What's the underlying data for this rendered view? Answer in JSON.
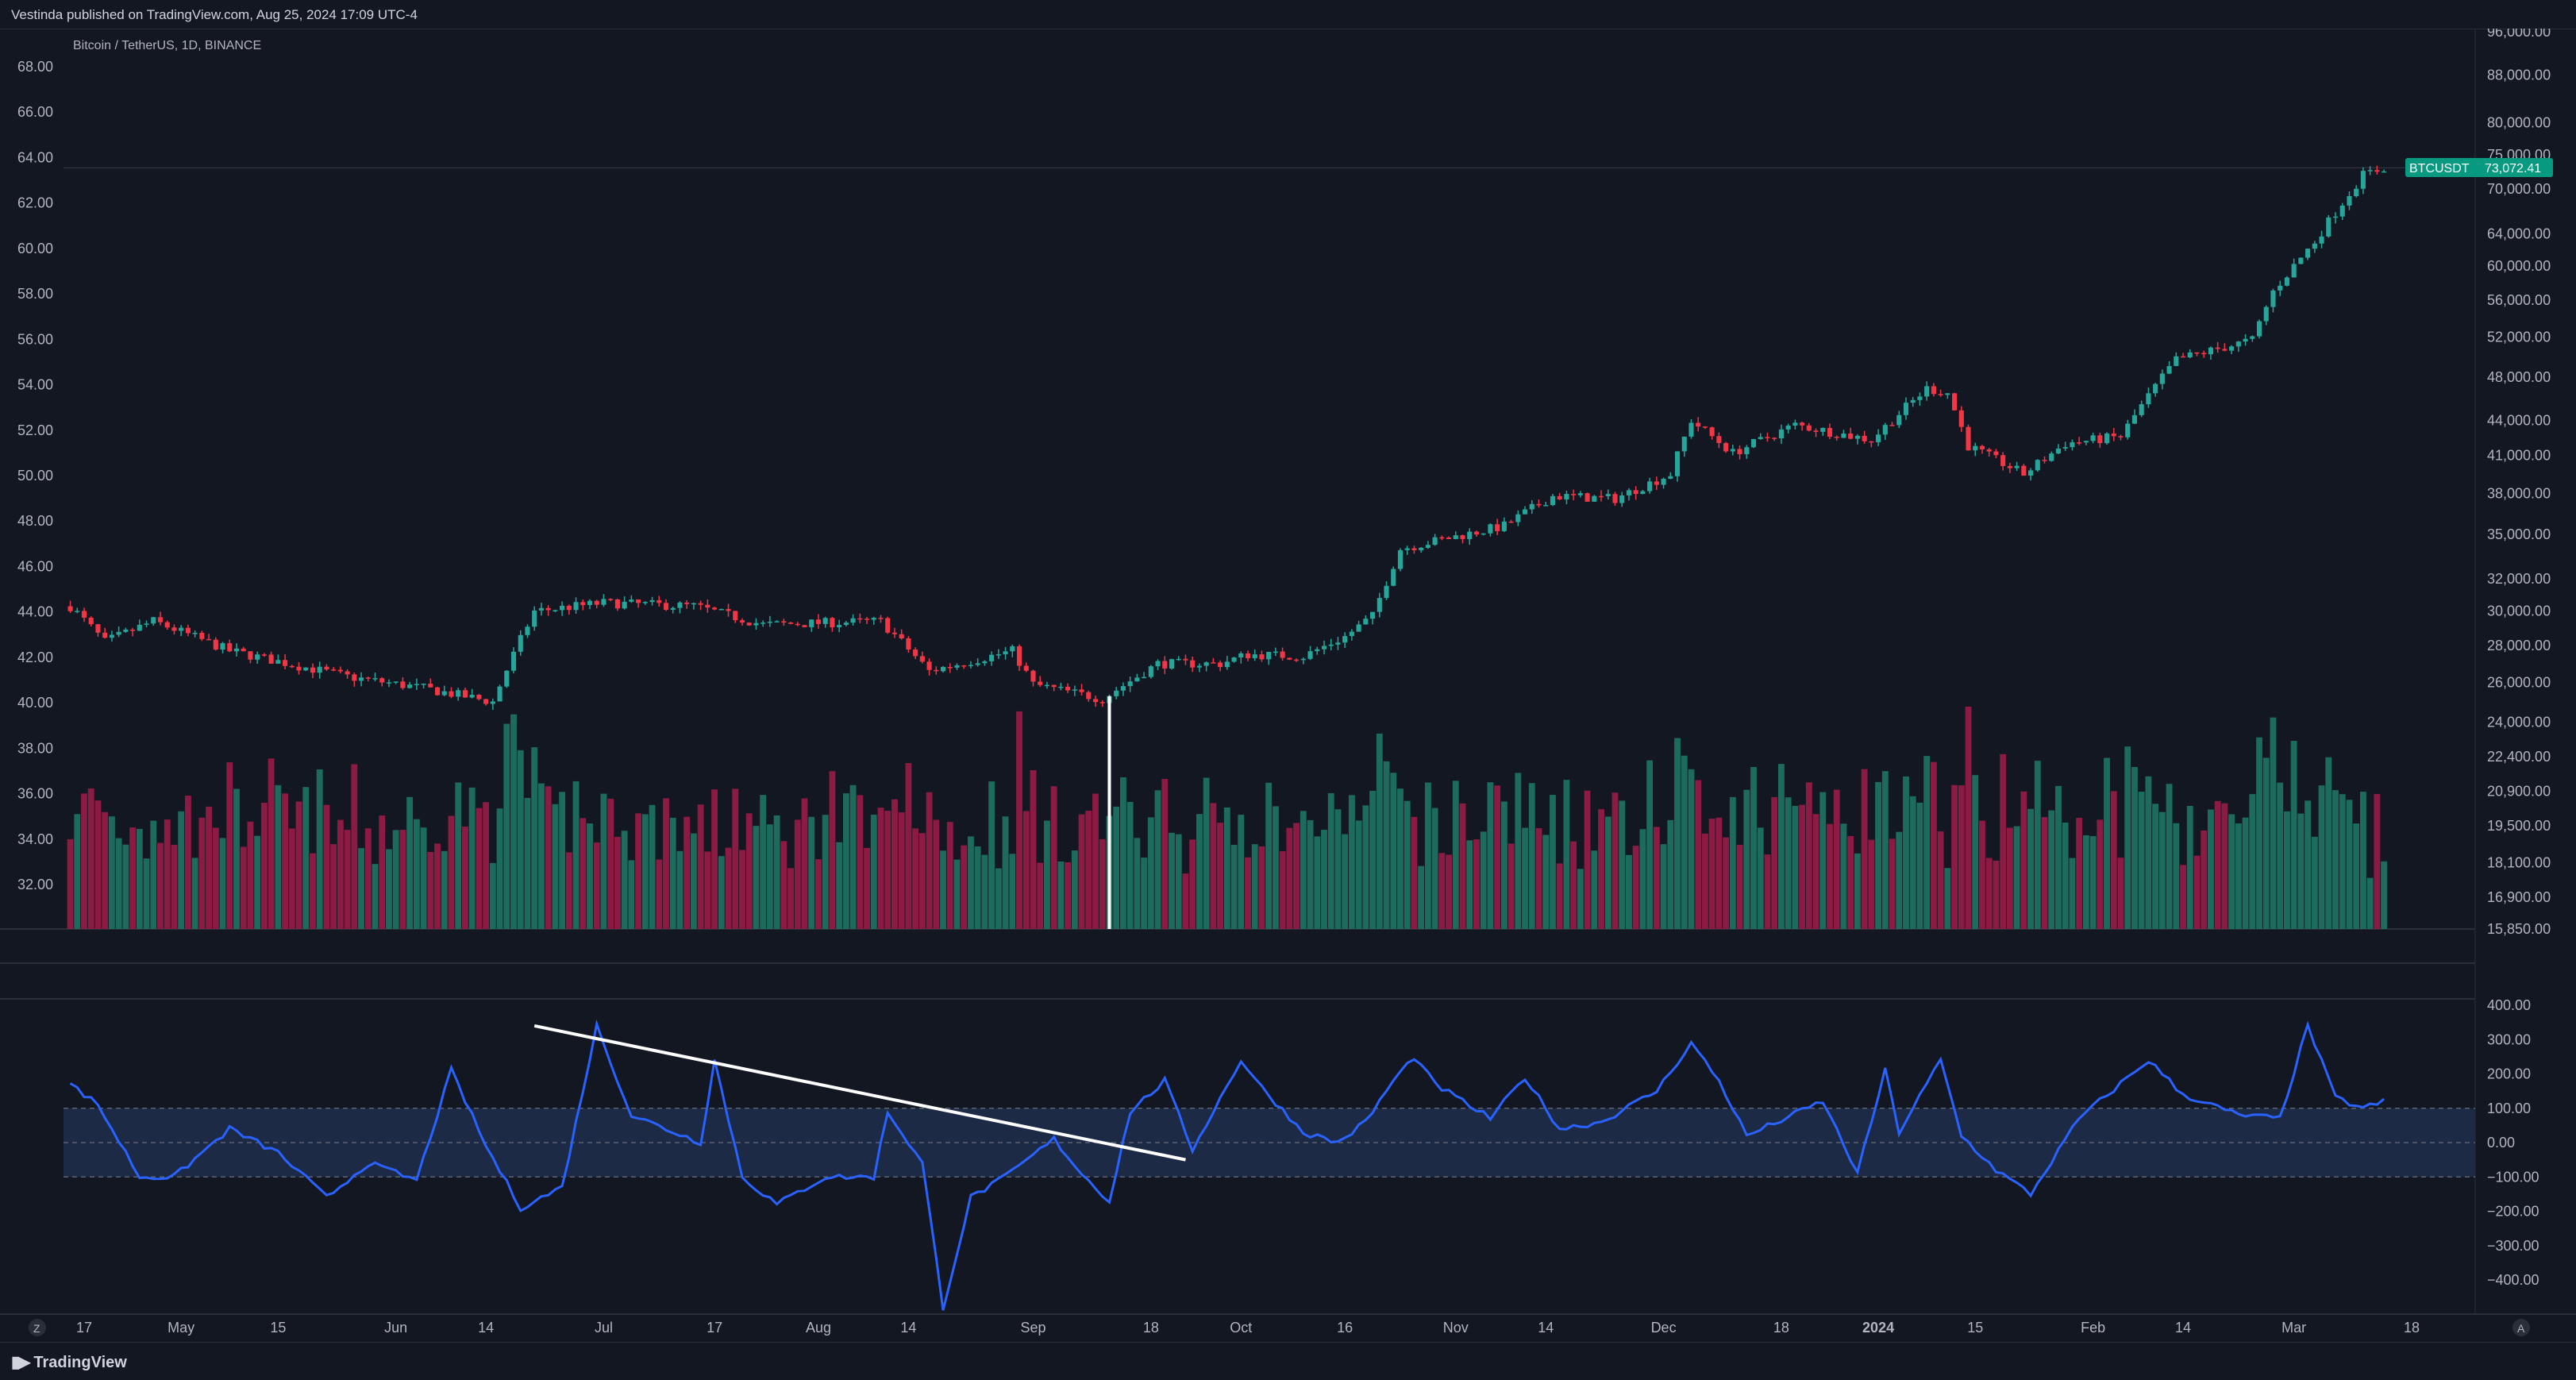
{
  "header": {
    "published": "Vestinda published on TradingView.com, Aug 25, 2024 17:09 UTC-4"
  },
  "symbol": {
    "title": "Bitcoin / TetherUS, 1D, BINANCE",
    "badge_name": "BTCUSDT",
    "badge_price": "73,072.41"
  },
  "footer": {
    "brand": "TradingView",
    "left_marker": "Z",
    "right_marker": "A"
  },
  "colors": {
    "background": "#131722",
    "up": "#26a69a",
    "down": "#f23645",
    "volume_up": "#1d6b5c",
    "volume_down": "#8c1b43",
    "oscillator": "#2962ff",
    "band_fill": "#1c2a46",
    "badge": "#089981",
    "annotation": "#ffffff"
  },
  "chart_data": [
    {
      "type": "candlestick",
      "title": "Bitcoin / TetherUS, 1D, BINANCE",
      "y_scale": "log",
      "ylim": [
        15850,
        96000
      ],
      "right_axis_ticks": [
        "96,000.00",
        "88,000.00",
        "80,000.00",
        "75,000.00",
        "70,000.00",
        "64,000.00",
        "60,000.00",
        "56,000.00",
        "52,000.00",
        "48,000.00",
        "44,000.00",
        "41,000.00",
        "38,000.00",
        "35,000.00",
        "32,000.00",
        "30,000.00",
        "28,000.00",
        "26,000.00",
        "24,000.00",
        "22,400.00",
        "20,900.00",
        "19,500.00",
        "18,100.00",
        "16,900.00",
        "15,850.00"
      ],
      "left_axis_ticks": [
        "68.00",
        "66.00",
        "64.00",
        "62.00",
        "60.00",
        "58.00",
        "56.00",
        "54.00",
        "52.00",
        "50.00",
        "48.00",
        "46.00",
        "44.00",
        "42.00",
        "40.00",
        "38.00",
        "36.00",
        "34.00",
        "32.00"
      ],
      "last_price": 73072.41,
      "anchors": [
        [
          "2023-04-15",
          30300
        ],
        [
          "2023-04-20",
          28200
        ],
        [
          "2023-04-27",
          29400
        ],
        [
          "2023-05-08",
          27700
        ],
        [
          "2023-05-25",
          26300
        ],
        [
          "2023-06-05",
          25700
        ],
        [
          "2023-06-15",
          25000
        ],
        [
          "2023-06-21",
          30000
        ],
        [
          "2023-07-01",
          30500
        ],
        [
          "2023-07-14",
          30300
        ],
        [
          "2023-07-24",
          29200
        ],
        [
          "2023-08-10",
          29400
        ],
        [
          "2023-08-17",
          26600
        ],
        [
          "2023-08-29",
          27700
        ],
        [
          "2023-09-01",
          25900
        ],
        [
          "2023-09-11",
          25150
        ],
        [
          "2023-09-19",
          27000
        ],
        [
          "2023-09-28",
          27000
        ],
        [
          "2023-10-02",
          27500
        ],
        [
          "2023-10-10",
          27400
        ],
        [
          "2023-10-16",
          28500
        ],
        [
          "2023-10-20",
          29700
        ],
        [
          "2023-10-24",
          34000
        ],
        [
          "2023-11-08",
          35600
        ],
        [
          "2023-11-15",
          37800
        ],
        [
          "2023-11-24",
          37600
        ],
        [
          "2023-12-02",
          39500
        ],
        [
          "2023-12-05",
          44000
        ],
        [
          "2023-12-11",
          41200
        ],
        [
          "2023-12-20",
          43600
        ],
        [
          "2023-12-31",
          42300
        ],
        [
          "2024-01-08",
          46900
        ],
        [
          "2024-01-11",
          46500
        ],
        [
          "2024-01-14",
          41800
        ],
        [
          "2024-01-22",
          39500
        ],
        [
          "2024-01-28",
          42000
        ],
        [
          "2024-02-05",
          42600
        ],
        [
          "2024-02-08",
          45300
        ],
        [
          "2024-02-13",
          49700
        ],
        [
          "2024-02-24",
          51700
        ],
        [
          "2024-02-27",
          57000
        ],
        [
          "2024-03-04",
          63000
        ],
        [
          "2024-03-11",
          72000
        ],
        [
          "2024-03-14",
          73072
        ]
      ]
    },
    {
      "type": "bar",
      "name": "Volume",
      "x_range": [
        "2023-04-15",
        "2024-03-14"
      ],
      "note_values": "relative heights 0-1"
    },
    {
      "type": "line",
      "name": "Oscillator",
      "ylim": [
        -480,
        400
      ],
      "axis_ticks": [
        "400.00",
        "300.00",
        "200.00",
        "100.00",
        "0.00",
        "−100.00",
        "−200.00",
        "−300.00",
        "−400.00"
      ],
      "band": [
        -100,
        100
      ],
      "anchors": [
        [
          "2023-04-15",
          170
        ],
        [
          "2023-04-19",
          110
        ],
        [
          "2023-04-25",
          -100
        ],
        [
          "2023-04-30",
          -100
        ],
        [
          "2023-05-08",
          40
        ],
        [
          "2023-05-15",
          -30
        ],
        [
          "2023-05-22",
          -160
        ],
        [
          "2023-05-28",
          -60
        ],
        [
          "2023-06-04",
          -110
        ],
        [
          "2023-06-09",
          210
        ],
        [
          "2023-06-14",
          -10
        ],
        [
          "2023-06-19",
          -190
        ],
        [
          "2023-06-25",
          -130
        ],
        [
          "2023-06-30",
          340
        ],
        [
          "2023-07-05",
          80
        ],
        [
          "2023-07-15",
          0
        ],
        [
          "2023-07-17",
          240
        ],
        [
          "2023-07-21",
          -100
        ],
        [
          "2023-07-26",
          -180
        ],
        [
          "2023-08-02",
          -100
        ],
        [
          "2023-08-09",
          -100
        ],
        [
          "2023-08-11",
          90
        ],
        [
          "2023-08-16",
          -60
        ],
        [
          "2023-08-19",
          -480
        ],
        [
          "2023-08-23",
          -160
        ],
        [
          "2023-08-28",
          -100
        ],
        [
          "2023-09-04",
          10
        ],
        [
          "2023-09-08",
          -90
        ],
        [
          "2023-09-12",
          -170
        ],
        [
          "2023-09-15",
          90
        ],
        [
          "2023-09-20",
          180
        ],
        [
          "2023-09-24",
          -20
        ],
        [
          "2023-10-01",
          240
        ],
        [
          "2023-10-04",
          160
        ],
        [
          "2023-10-10",
          30
        ],
        [
          "2023-10-15",
          0
        ],
        [
          "2023-10-19",
          60
        ],
        [
          "2023-10-23",
          180
        ],
        [
          "2023-10-26",
          250
        ],
        [
          "2023-10-29",
          170
        ],
        [
          "2023-11-06",
          70
        ],
        [
          "2023-11-11",
          190
        ],
        [
          "2023-11-16",
          40
        ],
        [
          "2023-11-22",
          60
        ],
        [
          "2023-11-30",
          150
        ],
        [
          "2023-12-05",
          290
        ],
        [
          "2023-12-09",
          180
        ],
        [
          "2023-12-13",
          20
        ],
        [
          "2023-12-24",
          120
        ],
        [
          "2023-12-29",
          -90
        ],
        [
          "2024-01-02",
          210
        ],
        [
          "2024-01-04",
          30
        ],
        [
          "2024-01-10",
          240
        ],
        [
          "2024-01-13",
          20
        ],
        [
          "2024-01-18",
          -80
        ],
        [
          "2024-01-23",
          -150
        ],
        [
          "2024-01-30",
          70
        ],
        [
          "2024-02-09",
          240
        ],
        [
          "2024-02-14",
          140
        ],
        [
          "2024-02-22",
          80
        ],
        [
          "2024-02-28",
          70
        ],
        [
          "2024-03-03",
          340
        ],
        [
          "2024-03-07",
          130
        ],
        [
          "2024-03-11",
          100
        ],
        [
          "2024-03-14",
          120
        ]
      ]
    }
  ],
  "time_axis": [
    {
      "label": "17",
      "date": "2023-04-17"
    },
    {
      "label": "May",
      "date": "2023-05-01"
    },
    {
      "label": "15",
      "date": "2023-05-15"
    },
    {
      "label": "Jun",
      "date": "2023-06-01"
    },
    {
      "label": "14",
      "date": "2023-06-14"
    },
    {
      "label": "Jul",
      "date": "2023-07-01"
    },
    {
      "label": "17",
      "date": "2023-07-17"
    },
    {
      "label": "Aug",
      "date": "2023-08-01"
    },
    {
      "label": "14",
      "date": "2023-08-14"
    },
    {
      "label": "Sep",
      "date": "2023-09-01"
    },
    {
      "label": "18",
      "date": "2023-09-18"
    },
    {
      "label": "Oct",
      "date": "2023-10-01"
    },
    {
      "label": "16",
      "date": "2023-10-16"
    },
    {
      "label": "Nov",
      "date": "2023-11-01"
    },
    {
      "label": "14",
      "date": "2023-11-14"
    },
    {
      "label": "Dec",
      "date": "2023-12-01"
    },
    {
      "label": "18",
      "date": "2023-12-18"
    },
    {
      "label": "2024",
      "date": "2024-01-01"
    },
    {
      "label": "15",
      "date": "2024-01-15"
    },
    {
      "label": "Feb",
      "date": "2024-02-01"
    },
    {
      "label": "14",
      "date": "2024-02-14"
    },
    {
      "label": "Mar",
      "date": "2024-03-01"
    },
    {
      "label": "18",
      "date": "2024-03-18"
    }
  ],
  "annotations": {
    "vertical_line_date": "2023-09-12",
    "trendline": [
      [
        "2023-06-21",
        340
      ],
      [
        "2023-09-23",
        -50
      ]
    ]
  }
}
